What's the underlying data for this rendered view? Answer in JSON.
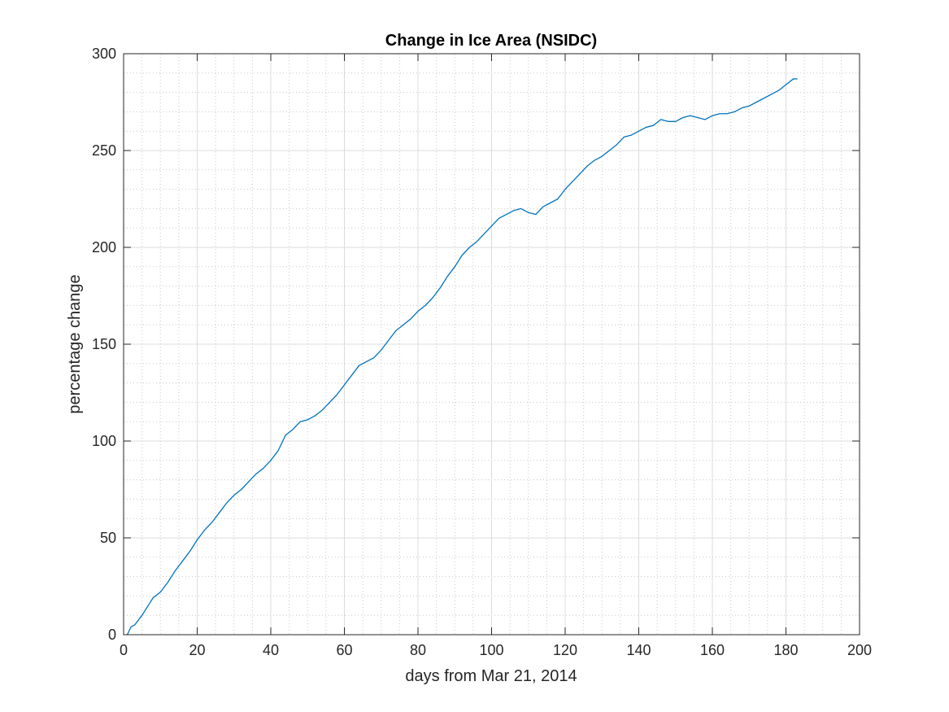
{
  "chart_data": {
    "type": "line",
    "title": "Change in Ice Area (NSIDC)",
    "xlabel": "days from Mar 21, 2014",
    "ylabel": "percentage change",
    "xlim": [
      0,
      200
    ],
    "ylim": [
      0,
      300
    ],
    "xticks": [
      "0",
      "20",
      "40",
      "60",
      "80",
      "100",
      "120",
      "140",
      "160",
      "180",
      "200"
    ],
    "yticks": [
      "0",
      "50",
      "100",
      "150",
      "200",
      "250",
      "300"
    ],
    "grid": "major and minor",
    "line_color": "#0072BD",
    "series": [
      {
        "x": [
          1,
          2,
          3,
          5,
          7,
          8,
          10,
          12,
          14,
          16,
          18,
          20,
          22,
          24,
          26,
          28,
          30,
          32,
          34,
          36,
          38,
          40,
          42,
          44,
          46,
          48,
          50,
          52,
          54,
          56,
          58,
          60,
          62,
          64,
          66,
          68,
          70,
          72,
          74,
          76,
          78,
          80,
          82,
          84,
          86,
          88,
          90,
          92,
          94,
          96,
          98,
          100,
          102,
          104,
          106,
          108,
          110,
          112,
          114,
          116,
          118,
          120,
          122,
          124,
          126,
          128,
          130,
          132,
          134,
          136,
          138,
          140,
          142,
          144,
          146,
          148,
          150,
          152,
          154,
          156,
          158,
          160,
          162,
          164,
          166,
          168,
          170,
          172,
          174,
          176,
          178,
          180,
          182,
          183
        ],
        "y": [
          0,
          4,
          5,
          10,
          16,
          19,
          22,
          27,
          33,
          38,
          43,
          49,
          54,
          58,
          63,
          68,
          72,
          75,
          79,
          83,
          86,
          90,
          95,
          103,
          106,
          110,
          111,
          113,
          116,
          120,
          124,
          129,
          134,
          139,
          141,
          143,
          147,
          152,
          157,
          160,
          163,
          167,
          170,
          174,
          179,
          185,
          190,
          196,
          200,
          203,
          207,
          211,
          215,
          217,
          219,
          220,
          218,
          217,
          221,
          223,
          225,
          230,
          234,
          238,
          242,
          245,
          247,
          250,
          253,
          257,
          258,
          260,
          262,
          263,
          266,
          265,
          265,
          267,
          268,
          267,
          266,
          268,
          269,
          269,
          270,
          272,
          273,
          275,
          277,
          279,
          281,
          284,
          287,
          287
        ]
      }
    ]
  }
}
